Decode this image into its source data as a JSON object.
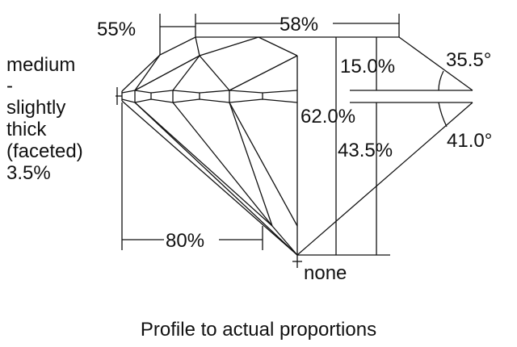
{
  "girdle_label": [
    "medium",
    "-",
    "slightly",
    "thick",
    "(faceted)",
    "3.5%"
  ],
  "dimensions": {
    "lower_half": "55%",
    "table": "58%",
    "crown_height": "15.0%",
    "crown_angle": "35.5°",
    "total_depth": "62.0%",
    "pavilion_depth": "43.5%",
    "pavilion_angle": "41.0°",
    "lower_girdle": "80%",
    "culet": "none"
  },
  "caption": "Profile to actual proportions",
  "colors": {
    "line": "#111111",
    "background": "#ffffff"
  }
}
